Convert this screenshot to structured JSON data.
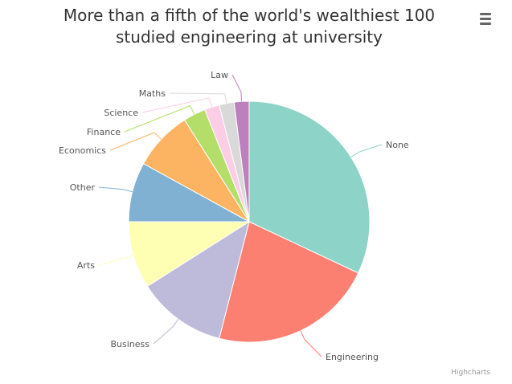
{
  "chart_data": {
    "type": "pie",
    "title": "More than a fifth of the world's wealthiest 100 studied engineering at university",
    "categories": [
      "None",
      "Engineering",
      "Business",
      "Arts",
      "Other",
      "Economics",
      "Finance",
      "Science",
      "Maths",
      "Law"
    ],
    "values": [
      32,
      22,
      12,
      9,
      8,
      8,
      3,
      2,
      2,
      2
    ],
    "colors": [
      "#8dd3c7",
      "#fb8072",
      "#bebada",
      "#ffffb3",
      "#80b1d3",
      "#fdb462",
      "#b3de69",
      "#fccde5",
      "#d9d9d9",
      "#bc80bd"
    ],
    "credits": "Highcharts"
  }
}
